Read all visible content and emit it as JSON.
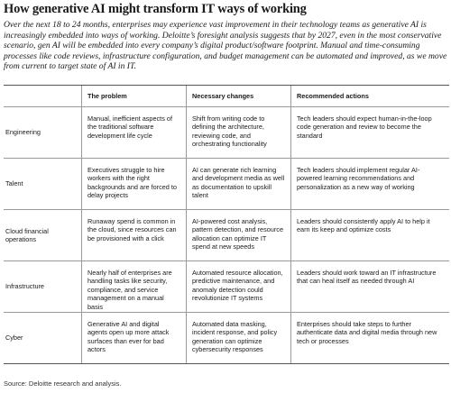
{
  "title": "How generative AI might transform IT ways of working",
  "intro": "Over the next 18 to 24 months, enterprises may experience vast improvement in their technology teams as generative AI is increasingly embedded into ways of working. Deloitte’s foresight analysis suggests that by 2027, even in the most conservative scenario, gen AI will be embedded into every company’s digital product/software footprint. Manual and time-consuming processes like code reviews, infrastructure configuration, and budget management can be automated and improved, as we move from current to target state of AI in IT.",
  "table": {
    "header": [
      "The problem",
      "Necessary changes",
      "Recommended actions"
    ],
    "rows": [
      {
        "label": "Engineering",
        "cells": [
          "Manual, inefficient aspects of the traditional software development life cycle",
          "Shift from writing code to defining the architecture, reviewing code, and orchestrating functionality",
          "Tech leaders should expect human-in-the-loop code generation and review to become the standard"
        ]
      },
      {
        "label": "Talent",
        "cells": [
          "Executives struggle to hire workers with the right backgrounds and are forced to delay projects",
          "AI can generate rich learning and development media as well as documentation to upskill talent",
          "Tech leaders should implement regular AI-powered learning recommendations and personalization as a new way of working"
        ]
      },
      {
        "label": "Cloud financial operations",
        "cells": [
          "Runaway spend is common in the cloud, since resources can be provisioned with a click",
          "AI-powered cost analysis, pattern detection, and resource allocation can optimize IT spend at new speeds",
          "Leaders should consistently apply AI to help it earn its keep and optimize costs"
        ]
      },
      {
        "label": "Infrastructure",
        "cells": [
          "Nearly half of enterprises are handling tasks like security, compliance, and service management on a manual basis",
          "Automated resource allocation, predictive maintenance, and anomaly detection could revolutionize IT systems",
          "Leaders should work toward an IT infrastructure that can heal itself as needed through AI"
        ]
      },
      {
        "label": "Cyber",
        "cells": [
          "Generative AI and digital agents open up more attack surfaces than ever for bad actors",
          "Automated data masking, incident response, and policy generation can optimize cybersecurity responses",
          "Enterprises should take steps to further authenticate data and digital media through new tech or processes"
        ]
      }
    ]
  },
  "source": "Source: Deloitte research and analysis."
}
